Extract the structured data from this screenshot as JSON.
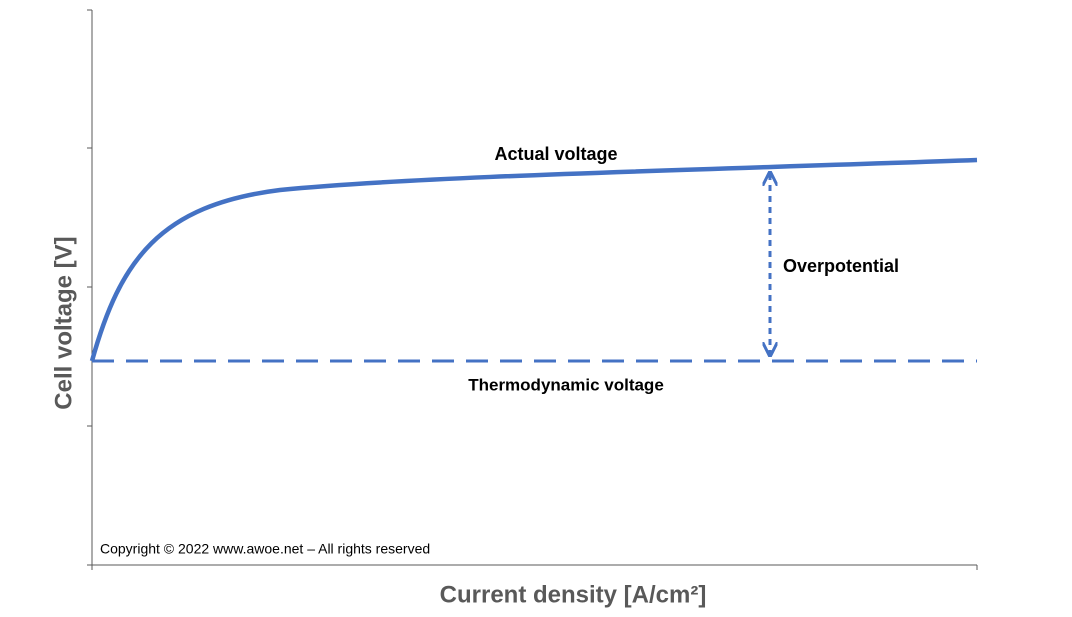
{
  "labels": {
    "actual": "Actual voltage",
    "overpotential": "Overpotential",
    "thermodynamic": "Thermodynamic voltage"
  },
  "axes": {
    "y_label": "Cell voltage [V]",
    "x_label": "Current density [A/cm²]"
  },
  "copyright": "Copyright © 2022 www.awoe.net – All rights reserved"
}
